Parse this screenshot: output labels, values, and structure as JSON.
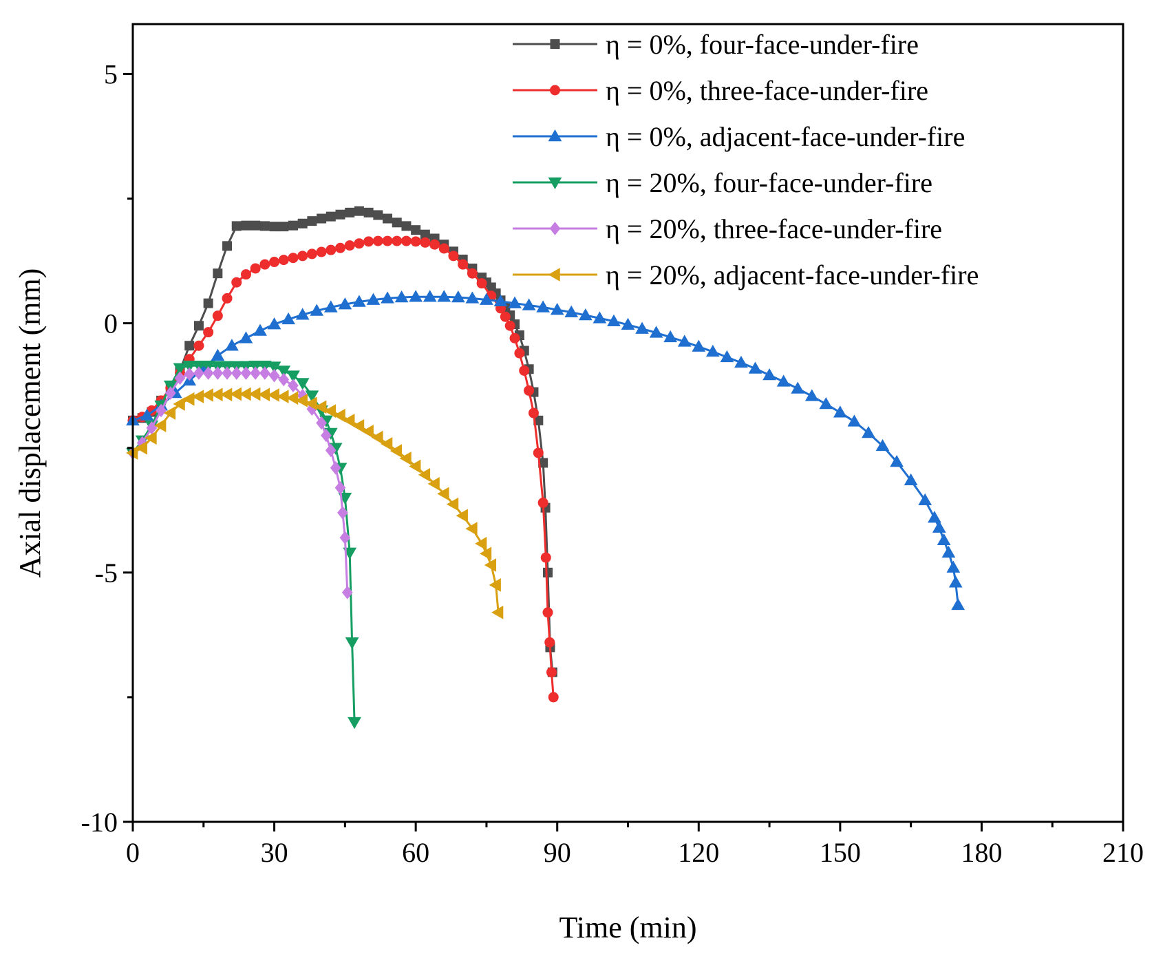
{
  "chart_data": {
    "type": "line",
    "title": "",
    "xlabel": "Time (min)",
    "ylabel": "Axial displacement (mm)",
    "xlim": [
      0,
      210
    ],
    "ylim": [
      -10,
      6
    ],
    "xticks": [
      0,
      30,
      60,
      90,
      120,
      150,
      180,
      210
    ],
    "xtick_labels": [
      "0",
      "30",
      "60",
      "90",
      "120",
      "150",
      "180",
      "210"
    ],
    "yticks": [
      -10,
      -5,
      0,
      5
    ],
    "ytick_labels": [
      "-10",
      "-5",
      "0",
      "5"
    ],
    "grid": false,
    "legend_position": "top-right",
    "series": [
      {
        "name": "η = 0%, four-face-under-fire",
        "color": "#4d4d4d",
        "marker": "square",
        "x": [
          0,
          2,
          4,
          6,
          8,
          10,
          12,
          14,
          16,
          18,
          20,
          22,
          24,
          26,
          28,
          30,
          32,
          34,
          36,
          38,
          40,
          42,
          44,
          46,
          48,
          50,
          52,
          54,
          56,
          58,
          60,
          62,
          64,
          66,
          68,
          70,
          72,
          74,
          75,
          76,
          77,
          78,
          79,
          80,
          81,
          82,
          83,
          84,
          85,
          86,
          87,
          87.5,
          88,
          88.5,
          89
        ],
        "y": [
          -1.95,
          -1.9,
          -1.78,
          -1.55,
          -1.3,
          -0.95,
          -0.45,
          -0.05,
          0.4,
          1.0,
          1.55,
          1.95,
          1.96,
          1.96,
          1.95,
          1.94,
          1.94,
          1.96,
          2.0,
          2.05,
          2.1,
          2.14,
          2.18,
          2.22,
          2.25,
          2.22,
          2.17,
          2.1,
          2.02,
          1.95,
          1.87,
          1.78,
          1.7,
          1.58,
          1.44,
          1.28,
          1.1,
          0.92,
          0.82,
          0.72,
          0.6,
          0.46,
          0.32,
          0.16,
          -0.02,
          -0.24,
          -0.55,
          -0.92,
          -1.38,
          -1.95,
          -2.8,
          -3.7,
          -5.0,
          -6.5,
          -7.0
        ]
      },
      {
        "name": "η = 0%, three-face-under-fire",
        "color": "#ee2d2d",
        "marker": "circle",
        "x": [
          0,
          2,
          4,
          6,
          8,
          10,
          12,
          14,
          16,
          18,
          20,
          22,
          24,
          26,
          28,
          30,
          32,
          34,
          36,
          38,
          40,
          42,
          44,
          46,
          48,
          50,
          52,
          54,
          56,
          58,
          60,
          62,
          64,
          66,
          68,
          70,
          72,
          74,
          76,
          78,
          79,
          80,
          81,
          82,
          83,
          84,
          85,
          86,
          87,
          87.6,
          88,
          88.4,
          88.8,
          89.2
        ],
        "y": [
          -1.95,
          -1.88,
          -1.75,
          -1.55,
          -1.3,
          -1.0,
          -0.72,
          -0.45,
          -0.18,
          0.15,
          0.5,
          0.82,
          0.98,
          1.1,
          1.18,
          1.23,
          1.27,
          1.31,
          1.35,
          1.39,
          1.43,
          1.47,
          1.51,
          1.56,
          1.6,
          1.64,
          1.65,
          1.65,
          1.65,
          1.65,
          1.64,
          1.62,
          1.58,
          1.5,
          1.35,
          1.18,
          1.0,
          0.8,
          0.55,
          0.3,
          0.13,
          -0.05,
          -0.3,
          -0.6,
          -0.95,
          -1.35,
          -1.8,
          -2.6,
          -3.6,
          -4.7,
          -5.8,
          -6.4,
          -7.0,
          -7.5
        ]
      },
      {
        "name": "η = 0%, adjacent-face-under-fire",
        "color": "#1f6fd0",
        "marker": "triangle-up",
        "x": [
          0,
          3,
          6,
          9,
          12,
          15,
          18,
          21,
          24,
          27,
          30,
          33,
          36,
          39,
          42,
          45,
          48,
          51,
          54,
          57,
          60,
          63,
          66,
          69,
          72,
          75,
          78,
          81,
          84,
          87,
          90,
          93,
          96,
          99,
          102,
          105,
          108,
          111,
          114,
          117,
          120,
          123,
          126,
          129,
          132,
          135,
          138,
          141,
          144,
          147,
          150,
          153,
          156,
          159,
          162,
          165,
          168,
          170,
          171,
          172,
          173,
          174,
          174.5,
          175
        ],
        "y": [
          -1.95,
          -1.85,
          -1.65,
          -1.4,
          -1.15,
          -0.9,
          -0.65,
          -0.45,
          -0.3,
          -0.15,
          -0.02,
          0.08,
          0.17,
          0.25,
          0.32,
          0.38,
          0.43,
          0.47,
          0.5,
          0.52,
          0.53,
          0.53,
          0.53,
          0.52,
          0.5,
          0.47,
          0.44,
          0.4,
          0.36,
          0.32,
          0.27,
          0.22,
          0.16,
          0.1,
          0.04,
          -0.03,
          -0.11,
          -0.19,
          -0.28,
          -0.37,
          -0.47,
          -0.57,
          -0.68,
          -0.79,
          -0.91,
          -1.04,
          -1.17,
          -1.31,
          -1.46,
          -1.62,
          -1.79,
          -1.97,
          -2.2,
          -2.46,
          -2.78,
          -3.15,
          -3.55,
          -3.9,
          -4.1,
          -4.35,
          -4.6,
          -4.9,
          -5.2,
          -5.65
        ]
      },
      {
        "name": "η = 20%, four-face-under-fire",
        "color": "#169e62",
        "marker": "triangle-down",
        "x": [
          0,
          2,
          4,
          6,
          8,
          10,
          12,
          14,
          16,
          18,
          20,
          22,
          24,
          26,
          28,
          30,
          32,
          34,
          36,
          38,
          40,
          41,
          42,
          43,
          44,
          45,
          46,
          46.5,
          47
        ],
        "y": [
          -2.6,
          -2.35,
          -2.05,
          -1.65,
          -1.25,
          -0.9,
          -0.85,
          -0.85,
          -0.85,
          -0.86,
          -0.86,
          -0.86,
          -0.86,
          -0.85,
          -0.85,
          -0.87,
          -0.95,
          -1.05,
          -1.2,
          -1.45,
          -1.75,
          -1.95,
          -2.2,
          -2.5,
          -2.9,
          -3.5,
          -4.6,
          -6.4,
          -8.0
        ]
      },
      {
        "name": "η = 20%, three-face-under-fire",
        "color": "#c77ee3",
        "marker": "diamond",
        "x": [
          0,
          2,
          4,
          6,
          8,
          10,
          12,
          14,
          16,
          18,
          20,
          22,
          24,
          26,
          28,
          30,
          32,
          34,
          36,
          38,
          40,
          41,
          42,
          43,
          44,
          44.5,
          45,
          45.5
        ],
        "y": [
          -2.6,
          -2.4,
          -2.1,
          -1.75,
          -1.4,
          -1.1,
          -1.02,
          -1.0,
          -1.0,
          -1.0,
          -1.0,
          -1.0,
          -1.0,
          -1.0,
          -1.0,
          -1.05,
          -1.13,
          -1.25,
          -1.45,
          -1.72,
          -2.0,
          -2.25,
          -2.55,
          -2.9,
          -3.3,
          -3.8,
          -4.3,
          -5.4
        ]
      },
      {
        "name": "η = 20%, adjacent-face-under-fire",
        "color": "#d9a011",
        "marker": "triangle-left",
        "x": [
          0,
          2,
          4,
          6,
          8,
          10,
          12,
          14,
          16,
          18,
          20,
          22,
          24,
          26,
          28,
          30,
          32,
          34,
          36,
          38,
          40,
          42,
          44,
          46,
          48,
          50,
          52,
          54,
          56,
          58,
          60,
          62,
          64,
          66,
          68,
          70,
          72,
          74,
          75,
          76,
          77,
          77.5
        ],
        "y": [
          -2.6,
          -2.5,
          -2.3,
          -2.05,
          -1.8,
          -1.62,
          -1.52,
          -1.47,
          -1.44,
          -1.43,
          -1.43,
          -1.42,
          -1.42,
          -1.42,
          -1.43,
          -1.44,
          -1.47,
          -1.5,
          -1.55,
          -1.61,
          -1.68,
          -1.76,
          -1.85,
          -1.95,
          -2.06,
          -2.17,
          -2.29,
          -2.42,
          -2.56,
          -2.71,
          -2.87,
          -3.04,
          -3.22,
          -3.42,
          -3.63,
          -3.86,
          -4.12,
          -4.42,
          -4.62,
          -4.85,
          -5.25,
          -5.8
        ]
      }
    ]
  }
}
